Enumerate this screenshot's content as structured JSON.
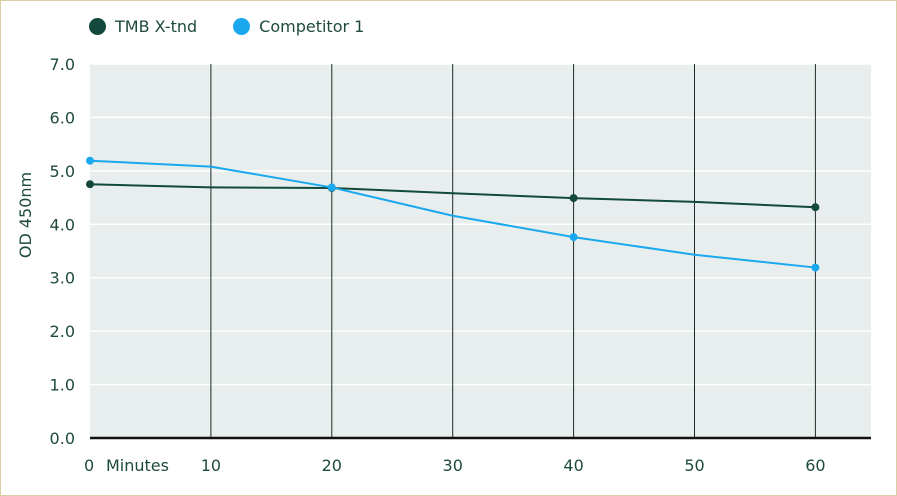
{
  "chart_data": {
    "type": "line",
    "xlabel": "Minutes",
    "ylabel": "OD 450nm",
    "xlim": [
      0,
      65
    ],
    "ylim": [
      0,
      7
    ],
    "x_ticks": [
      0,
      10,
      20,
      30,
      40,
      50,
      60
    ],
    "y_ticks": [
      0,
      1,
      2,
      3,
      4,
      5,
      6,
      7
    ],
    "y_tick_labels": [
      "0.0",
      "1.0",
      "2.0",
      "3.0",
      "4.0",
      "5.0",
      "6.0",
      "7.0"
    ],
    "x_tick_labels": [
      "0",
      "10",
      "20",
      "30",
      "40",
      "50",
      "60"
    ],
    "grid": "horizontal-white-and-vertical-dark",
    "legend_position": "top-left",
    "series": [
      {
        "name": "TMB X-tnd",
        "color": "#12493c",
        "x": [
          0,
          10,
          20,
          30,
          40,
          50,
          60
        ],
        "y": [
          4.75,
          4.69,
          4.68,
          4.58,
          4.49,
          4.42,
          4.32
        ],
        "marker_x": [
          0,
          20,
          40,
          60
        ]
      },
      {
        "name": "Competitor 1",
        "color": "#1aa9ef",
        "x": [
          0,
          10,
          20,
          30,
          40,
          50,
          60
        ],
        "y": [
          5.19,
          5.08,
          4.69,
          4.16,
          3.76,
          3.43,
          3.19
        ],
        "marker_x": [
          0,
          20,
          40,
          60
        ]
      }
    ]
  },
  "colors": {
    "plot_background": "#e8eeed",
    "axis_text": "#1e4a3e",
    "frame_border": "#d9cfa6"
  }
}
